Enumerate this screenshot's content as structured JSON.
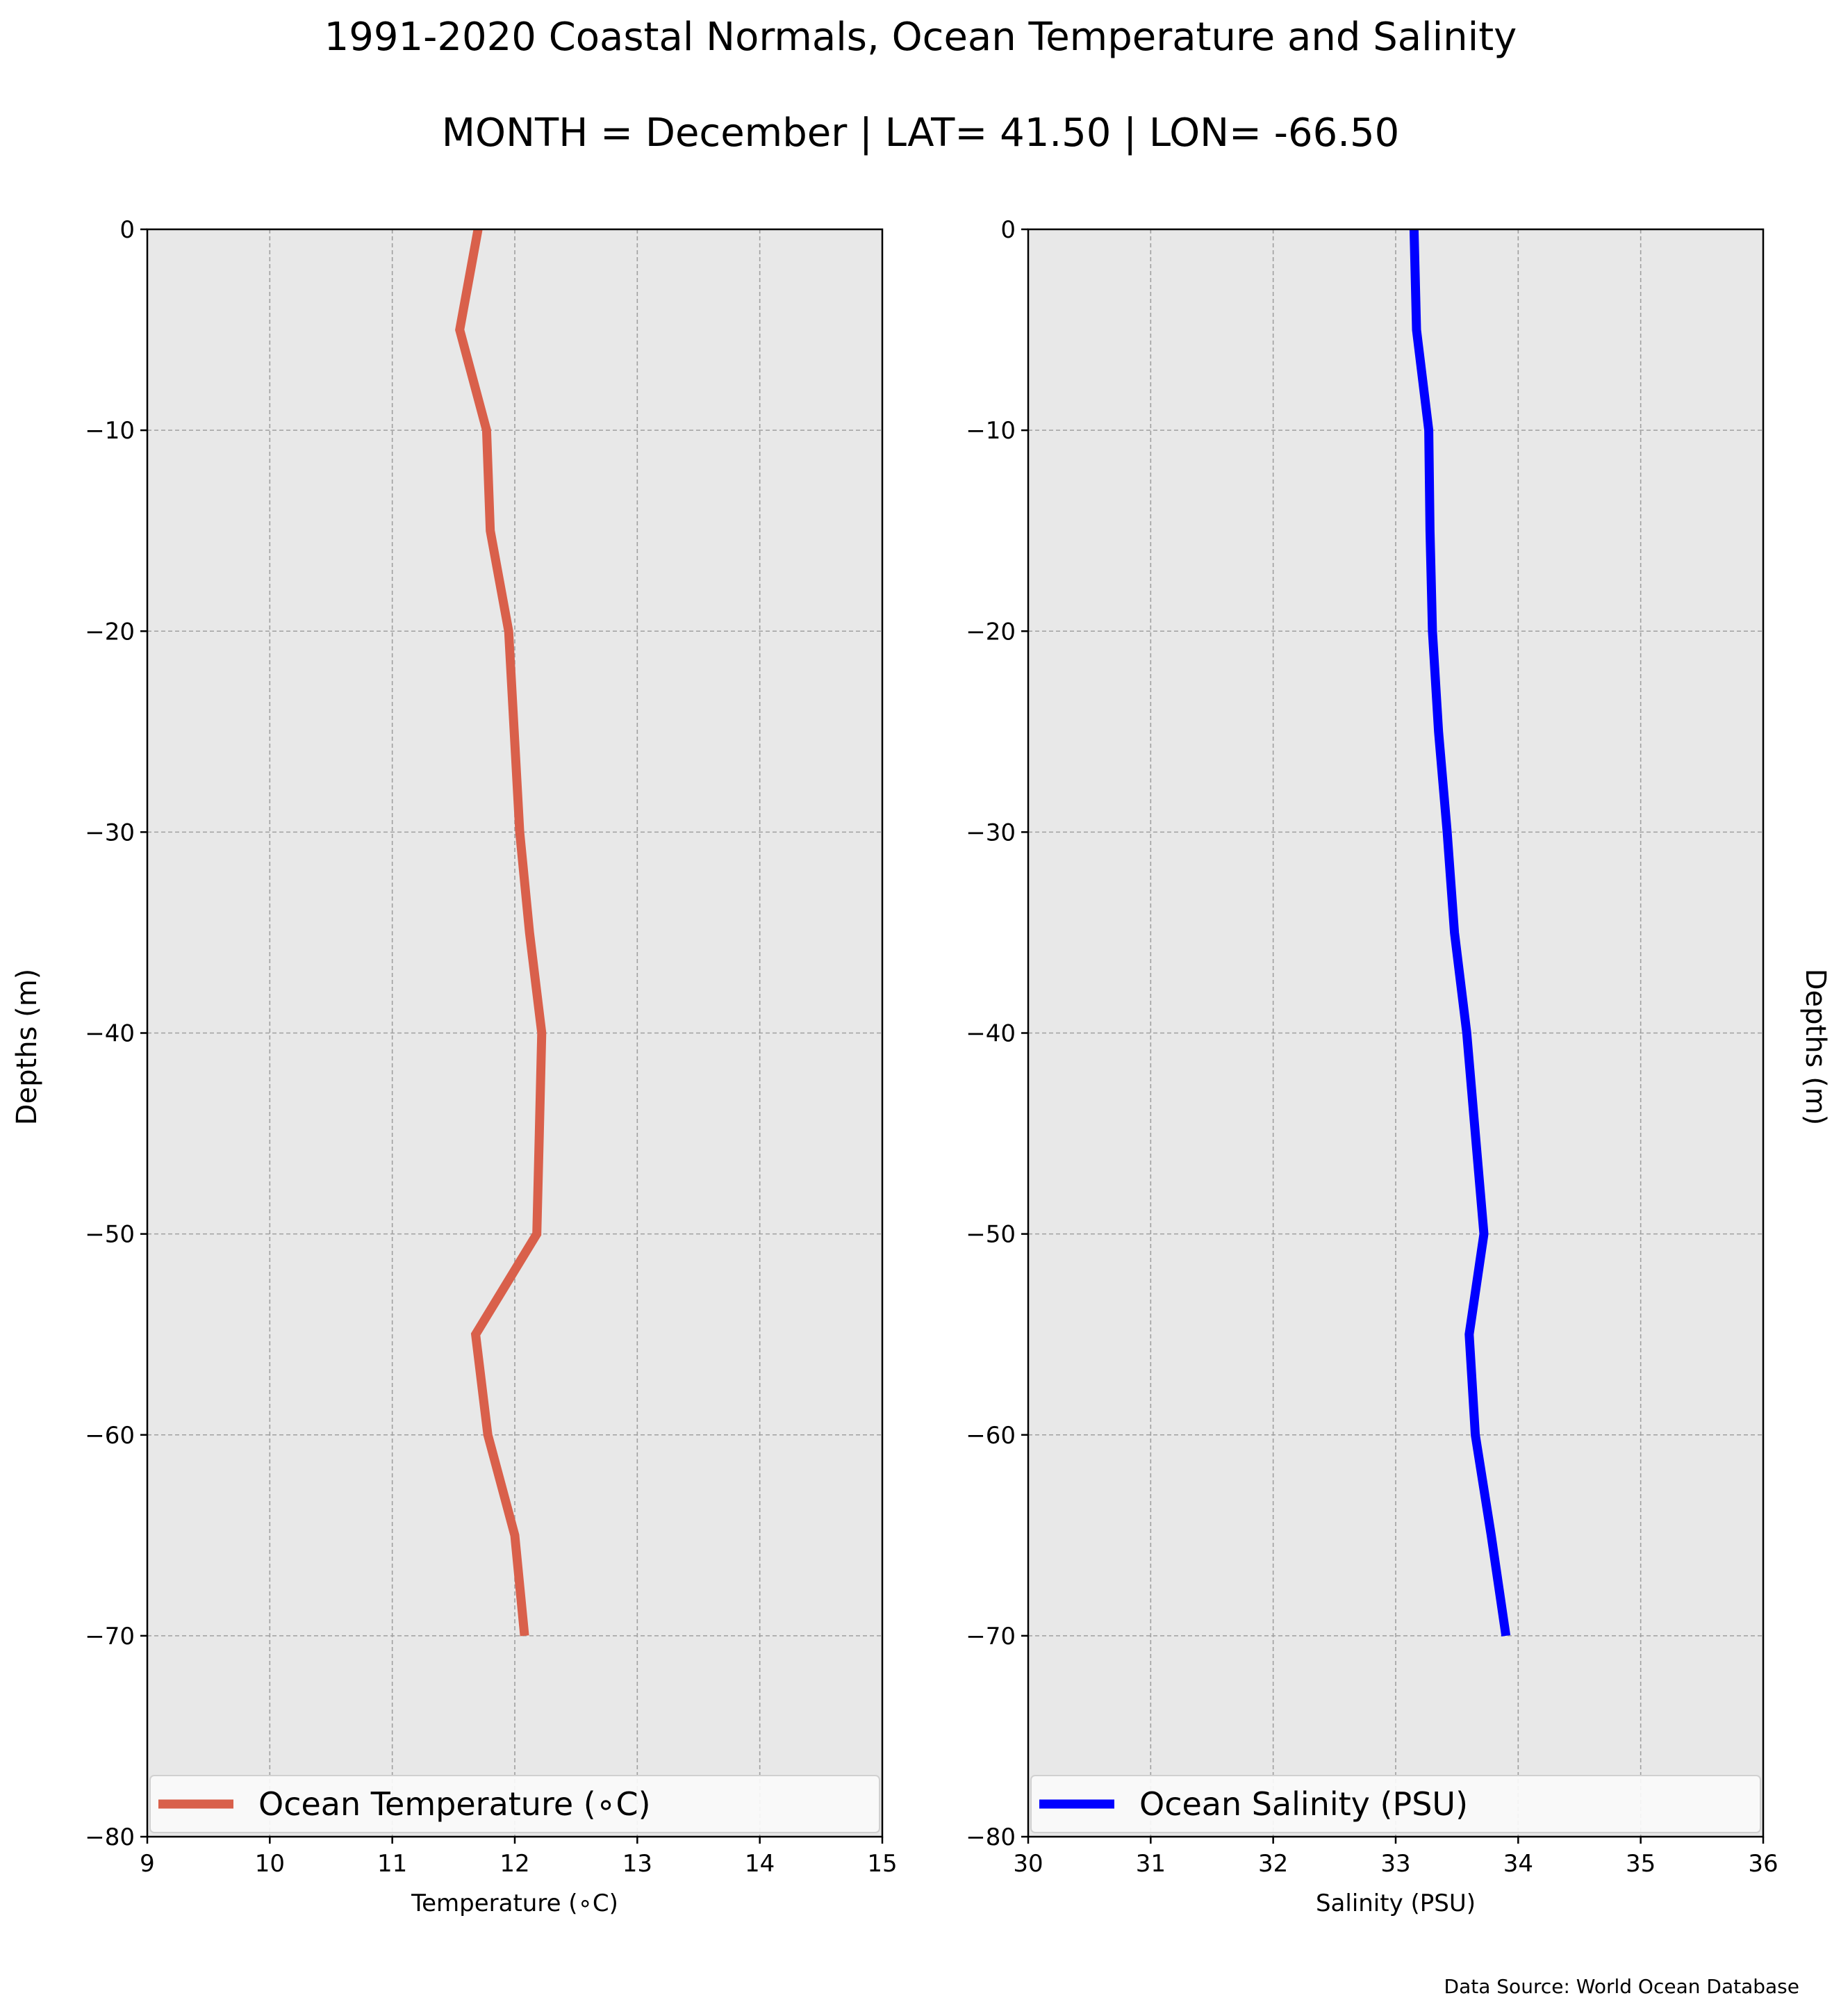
{
  "page": {
    "title": "1991-2020 Coastal Normals, Ocean Temperature and Salinity",
    "subtitle": "MONTH = December | LAT= 41.50 | LON= -66.50",
    "source": "Data Source: World Ocean Database",
    "background": "#ffffff",
    "axes_background": "#e8e8e8",
    "grid_color": "#a0a0a0"
  },
  "chart_data": [
    {
      "type": "line",
      "title": "",
      "xlabel": "Temperature ($^\\circ$C)",
      "xlabel_display": "Temperature (∘C)",
      "ylabel": "Depths (m)",
      "xlim": [
        9,
        15
      ],
      "ylim": [
        -80,
        0
      ],
      "xticks": [
        9,
        10,
        11,
        12,
        13,
        14,
        15
      ],
      "yticks": [
        0,
        -10,
        -20,
        -30,
        -40,
        -50,
        -60,
        -70,
        -80
      ],
      "grid": true,
      "legend": "bottom-center",
      "series": [
        {
          "name": "Ocean Temperature ($^\\circ$C)",
          "display_name": "Ocean Temperature (∘C)",
          "color": "#d9604b",
          "x": [
            11.7,
            11.55,
            11.77,
            11.8,
            11.95,
            12.04,
            12.12,
            12.22,
            12.2,
            12.18,
            11.68,
            11.78,
            12.0,
            12.08
          ],
          "y": [
            0,
            -5,
            -10,
            -15,
            -20,
            -30,
            -35,
            -40,
            -45,
            -50,
            -55,
            -60,
            -65,
            -70
          ]
        }
      ]
    },
    {
      "type": "line",
      "title": "",
      "xlabel": "Salinity (PSU)",
      "xlabel_display": "Salinity (PSU)",
      "ylabel": "Depths (m)",
      "xlim": [
        30,
        36
      ],
      "ylim": [
        -80,
        0
      ],
      "xticks": [
        30,
        31,
        32,
        33,
        34,
        35,
        36
      ],
      "yticks": [
        0,
        -10,
        -20,
        -30,
        -40,
        -50,
        -60,
        -70,
        -80
      ],
      "grid": true,
      "legend": "bottom-center",
      "series": [
        {
          "name": "Ocean Salinity (PSU)",
          "display_name": "Ocean Salinity (PSU)",
          "color": "#0000ff",
          "x": [
            33.15,
            33.17,
            33.27,
            33.28,
            33.3,
            33.35,
            33.42,
            33.48,
            33.58,
            33.65,
            33.72,
            33.6,
            33.65,
            33.78,
            33.9
          ],
          "y": [
            0,
            -5,
            -10,
            -15,
            -20,
            -25,
            -30,
            -35,
            -40,
            -45,
            -50,
            -55,
            -60,
            -65,
            -70
          ]
        }
      ]
    }
  ]
}
